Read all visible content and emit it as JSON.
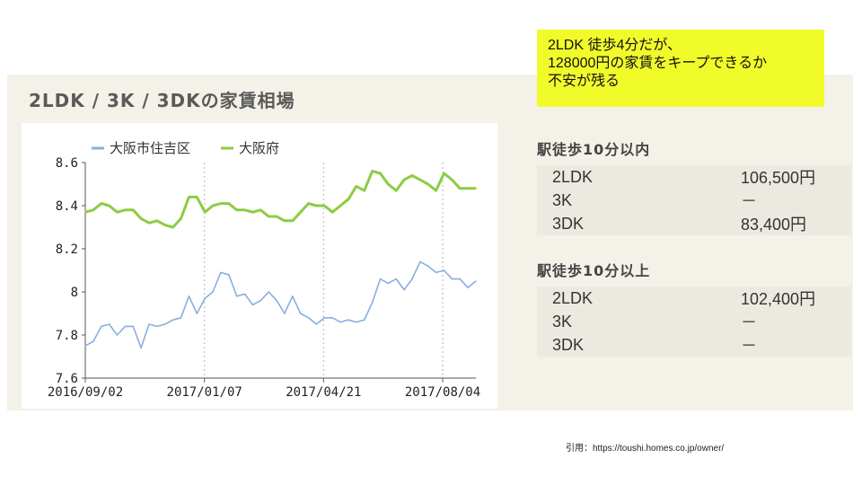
{
  "header": {
    "title": "2LDK / 3K / 3DKの家賃相場"
  },
  "note": {
    "lines": [
      "2LDK 徒歩4分だが、",
      "128000円の家賃をキープできるか",
      "不安が残る"
    ],
    "background": "#f2fb2a"
  },
  "rent_sections": [
    {
      "heading": "駅徒歩10分以内",
      "rows": [
        {
          "type": "2LDK",
          "price": "106,500円"
        },
        {
          "type": "3K",
          "price": "－"
        },
        {
          "type": "3DK",
          "price": "83,400円"
        }
      ]
    },
    {
      "heading": "駅徒歩10分以上",
      "rows": [
        {
          "type": "2LDK",
          "price": "102,400円"
        },
        {
          "type": "3K",
          "price": "－"
        },
        {
          "type": "3DK",
          "price": "－"
        }
      ]
    }
  ],
  "citation": "引用：https://toushi.homes.co.jp/owner/",
  "chart_data": {
    "type": "line",
    "ylim": [
      7.6,
      8.6
    ],
    "yticks": [
      "8.6",
      "8.4",
      "8.2",
      "8",
      "7.8",
      "7.6"
    ],
    "xtick_labels": [
      "2016/09/02",
      "2017/01/07",
      "2017/04/21",
      "2017/08/04"
    ],
    "legend_position": "top",
    "grid": "vertical dashed",
    "series": [
      {
        "name": "大阪市住吉区",
        "color": "#8aaee0",
        "values": [
          7.75,
          7.77,
          7.84,
          7.85,
          7.8,
          7.84,
          7.84,
          7.74,
          7.85,
          7.84,
          7.85,
          7.87,
          7.88,
          7.98,
          7.9,
          7.97,
          8.0,
          8.09,
          8.08,
          7.98,
          7.99,
          7.94,
          7.96,
          8.0,
          7.96,
          7.9,
          7.98,
          7.9,
          7.88,
          7.85,
          7.88,
          7.88,
          7.86,
          7.87,
          7.86,
          7.87,
          7.95,
          8.06,
          8.04,
          8.06,
          8.01,
          8.06,
          8.14,
          8.12,
          8.09,
          8.1,
          8.06,
          8.06,
          8.02,
          8.05
        ]
      },
      {
        "name": "大阪府",
        "color": "#8ccc44",
        "values": [
          8.37,
          8.38,
          8.41,
          8.4,
          8.37,
          8.38,
          8.38,
          8.34,
          8.32,
          8.33,
          8.31,
          8.3,
          8.34,
          8.44,
          8.44,
          8.37,
          8.4,
          8.41,
          8.41,
          8.38,
          8.38,
          8.37,
          8.38,
          8.35,
          8.35,
          8.33,
          8.33,
          8.37,
          8.41,
          8.4,
          8.4,
          8.37,
          8.4,
          8.43,
          8.49,
          8.47,
          8.56,
          8.55,
          8.5,
          8.47,
          8.52,
          8.54,
          8.52,
          8.5,
          8.47,
          8.55,
          8.52,
          8.48,
          8.48,
          8.48
        ]
      }
    ]
  }
}
